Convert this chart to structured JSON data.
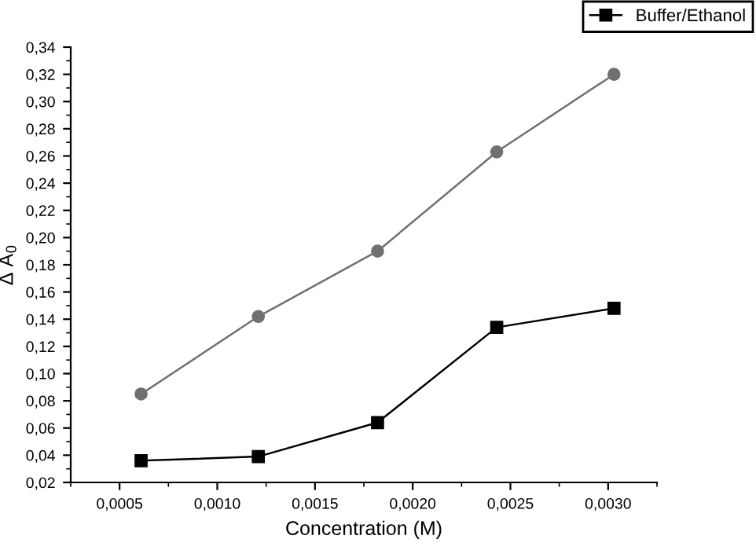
{
  "chart_data": {
    "type": "line",
    "xlabel": "Concentration (M)",
    "ylabel": "Δ A$_{0}$",
    "x": [
      0.00061,
      0.00121,
      0.00182,
      0.00243,
      0.00303
    ],
    "series": [
      {
        "name": "Buffer/Ethanol",
        "color": "#000000",
        "marker": "square",
        "values": [
          0.036,
          0.039,
          0.064,
          0.134,
          0.148
        ]
      },
      {
        "color": "#707070",
        "marker": "circle",
        "values": [
          0.085,
          0.142,
          0.19,
          0.263,
          0.32
        ]
      }
    ],
    "xlim": [
      0.00025,
      0.00325
    ],
    "xticks": [
      {
        "value": 0.0005,
        "label": "0,0005"
      },
      {
        "value": 0.001,
        "label": "0,0010"
      },
      {
        "value": 0.0015,
        "label": "0,0015"
      },
      {
        "value": 0.002,
        "label": "0,0020"
      },
      {
        "value": 0.0025,
        "label": "0,0025"
      },
      {
        "value": 0.003,
        "label": "0,0030"
      }
    ],
    "ylim": [
      0.02,
      0.34
    ],
    "yticks": [
      {
        "value": 0.02,
        "label": "0,02"
      },
      {
        "value": 0.04,
        "label": "0,04"
      },
      {
        "value": 0.06,
        "label": "0,06"
      },
      {
        "value": 0.08,
        "label": "0,08"
      },
      {
        "value": 0.1,
        "label": "0,10"
      },
      {
        "value": 0.12,
        "label": "0,12"
      },
      {
        "value": 0.14,
        "label": "0,14"
      },
      {
        "value": 0.16,
        "label": "0,16"
      },
      {
        "value": 0.18,
        "label": "0,18"
      },
      {
        "value": 0.2,
        "label": "0,20"
      },
      {
        "value": 0.22,
        "label": "0,22"
      },
      {
        "value": 0.24,
        "label": "0,24"
      },
      {
        "value": 0.26,
        "label": "0,26"
      },
      {
        "value": 0.28,
        "label": "0,28"
      },
      {
        "value": 0.3,
        "label": "0,30"
      },
      {
        "value": 0.32,
        "label": "0,32"
      },
      {
        "value": 0.34,
        "label": "0,34"
      }
    ],
    "grid": false,
    "legend": "top right",
    "line_style": "solid"
  }
}
